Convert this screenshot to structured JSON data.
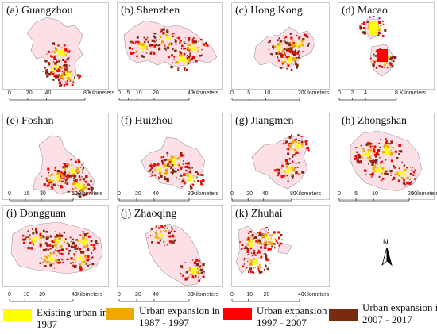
{
  "panels": [
    {
      "label": "(a) Guangzhou",
      "scale": {
        "ticks": [
          "0",
          "20",
          "40",
          "80"
        ],
        "unit": "Kilometers"
      }
    },
    {
      "label": "(b) Shenzhen",
      "scale": {
        "ticks": [
          "0",
          "5",
          "10",
          "20",
          "40"
        ],
        "unit": "Kilometers"
      }
    },
    {
      "label": "(c) Hong Kong",
      "scale": {
        "ticks": [
          "0",
          "5",
          "10",
          "20"
        ],
        "unit": "Kilometers"
      }
    },
    {
      "label": "(d) Macao",
      "scale": {
        "ticks": [
          "0",
          "2",
          "4",
          "8"
        ],
        "unit": "Kilometers"
      }
    },
    {
      "label": "(e) Foshan",
      "scale": {
        "ticks": [
          "0",
          "15",
          "30",
          "60"
        ],
        "unit": "Kilometers"
      }
    },
    {
      "label": "(f) Huizhou",
      "scale": {
        "ticks": [
          "0",
          "20",
          "40",
          "80"
        ],
        "unit": "Kilometers"
      }
    },
    {
      "label": "(g) Jiangmen",
      "scale": {
        "ticks": [
          "0",
          "20",
          "40",
          "80"
        ],
        "unit": "Kilometers"
      }
    },
    {
      "label": "(h) Zhongshan",
      "scale": {
        "ticks": [
          "0",
          "5",
          "10",
          "20"
        ],
        "unit": "Kilometers"
      }
    },
    {
      "label": "(i) Dongguan",
      "scale": {
        "ticks": [
          "0",
          "10",
          "20",
          "40"
        ],
        "unit": "Kilometers"
      }
    },
    {
      "label": "(j) Zhaoqing",
      "scale": {
        "ticks": [
          "0",
          "20",
          "40",
          "80"
        ],
        "unit": "Kilometers"
      }
    },
    {
      "label": "(k) Zhuhai",
      "scale": {
        "ticks": [
          "0",
          "10",
          "20",
          "40"
        ],
        "unit": "Kilometers"
      }
    }
  ],
  "legend": [
    {
      "line1": "Existing urban in",
      "line2": "1987",
      "color": "#ffff00"
    },
    {
      "line1": "Urban expansion in",
      "line2": "1987 - 1997",
      "color": "#f0a800"
    },
    {
      "line1": "Urban expansion in",
      "line2": "1997 - 2007",
      "color": "#ff0000"
    },
    {
      "line1": "Urban expansion in",
      "line2": "2007 - 2017",
      "color": "#7a2a10"
    }
  ],
  "north_arrow": {
    "label": "N"
  },
  "colors": {
    "outline": "#999999",
    "fill": "#fde0e6",
    "period1": "#ffff00",
    "period2": "#f0a800",
    "period3": "#ff0000",
    "period4": "#7a2a10"
  }
}
